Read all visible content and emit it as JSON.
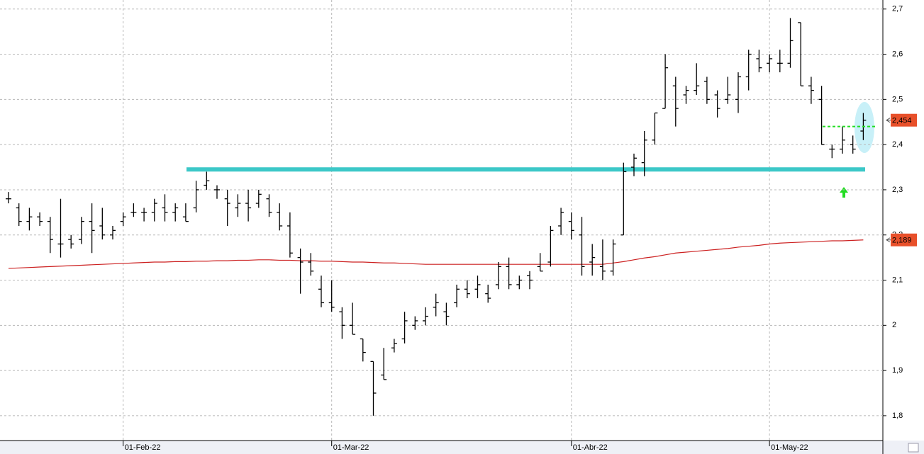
{
  "chart_data": {
    "type": "ohlc",
    "categories": [
      null,
      null,
      null,
      null,
      null,
      null,
      null,
      null,
      null,
      null,
      null,
      "01-Feb-22",
      null,
      null,
      null,
      null,
      null,
      null,
      null,
      null,
      null,
      null,
      null,
      null,
      null,
      null,
      null,
      null,
      null,
      null,
      null,
      "01-Mar-22",
      null,
      null,
      null,
      null,
      null,
      null,
      null,
      null,
      null,
      null,
      null,
      null,
      null,
      null,
      null,
      null,
      null,
      null,
      null,
      null,
      null,
      null,
      "01-Abr-22",
      null,
      null,
      null,
      null,
      null,
      null,
      null,
      null,
      null,
      null,
      null,
      null,
      null,
      null,
      null,
      null,
      null,
      null,
      "01-May-22",
      null,
      null,
      null,
      null,
      null,
      null,
      null,
      null,
      null
    ],
    "ohlc": {
      "color": "#000000",
      "open": [
        2.28,
        2.26,
        2.23,
        2.24,
        2.23,
        2.18,
        2.19,
        2.19,
        2.23,
        2.22,
        2.2,
        2.23,
        2.25,
        2.25,
        2.25,
        2.26,
        2.25,
        2.24,
        2.26,
        2.31,
        2.3,
        2.28,
        2.26,
        2.27,
        2.27,
        2.28,
        2.25,
        2.22,
        2.15,
        2.14,
        2.08,
        2.05,
        2.03,
        2.0,
        1.97,
        1.92,
        1.89,
        1.95,
        1.97,
        2.0,
        2.01,
        2.04,
        2.03,
        2.05,
        2.08,
        2.08,
        2.07,
        2.09,
        2.13,
        2.09,
        2.11,
        2.13,
        2.14,
        2.22,
        2.23,
        2.2,
        2.14,
        2.13,
        2.12,
        2.2,
        2.35,
        2.36,
        2.41,
        2.48,
        2.53,
        2.51,
        2.52,
        2.54,
        2.51,
        2.5,
        2.5,
        2.55,
        2.59,
        2.58,
        2.58,
        2.58,
        2.67,
        2.53,
        2.5,
        2.39,
        2.39,
        2.4,
        2.43
      ],
      "high": [
        2.295,
        2.27,
        2.26,
        2.25,
        2.24,
        2.28,
        2.2,
        2.24,
        2.27,
        2.26,
        2.22,
        2.25,
        2.27,
        2.26,
        2.28,
        2.29,
        2.27,
        2.27,
        2.32,
        2.34,
        2.31,
        2.3,
        2.29,
        2.3,
        2.3,
        2.29,
        2.27,
        2.25,
        2.17,
        2.16,
        2.11,
        2.1,
        2.04,
        2.05,
        1.97,
        1.92,
        1.95,
        1.97,
        2.03,
        2.02,
        2.04,
        2.07,
        2.05,
        2.09,
        2.1,
        2.11,
        2.09,
        2.14,
        2.15,
        2.11,
        2.12,
        2.16,
        2.22,
        2.26,
        2.25,
        2.24,
        2.18,
        2.19,
        2.19,
        2.36,
        2.38,
        2.43,
        2.47,
        2.6,
        2.55,
        2.53,
        2.58,
        2.55,
        2.52,
        2.55,
        2.56,
        2.61,
        2.61,
        2.6,
        2.61,
        2.68,
        2.67,
        2.55,
        2.53,
        2.4,
        2.44,
        2.42,
        2.47
      ],
      "low": [
        2.27,
        2.22,
        2.21,
        2.22,
        2.16,
        2.15,
        2.17,
        2.18,
        2.16,
        2.19,
        2.19,
        2.22,
        2.24,
        2.23,
        2.23,
        2.23,
        2.23,
        2.23,
        2.25,
        2.3,
        2.28,
        2.22,
        2.24,
        2.23,
        2.26,
        2.24,
        2.21,
        2.15,
        2.07,
        2.11,
        2.04,
        2.03,
        1.97,
        1.98,
        1.92,
        1.8,
        1.88,
        1.94,
        1.96,
        1.99,
        2.0,
        2.02,
        2.0,
        2.04,
        2.06,
        2.06,
        2.05,
        2.08,
        2.08,
        2.08,
        2.08,
        2.12,
        2.13,
        2.2,
        2.19,
        2.11,
        2.11,
        2.1,
        2.11,
        2.2,
        2.33,
        2.33,
        2.4,
        2.48,
        2.44,
        2.49,
        2.51,
        2.49,
        2.46,
        2.49,
        2.47,
        2.52,
        2.56,
        2.56,
        2.56,
        2.57,
        2.53,
        2.49,
        2.4,
        2.37,
        2.38,
        2.38,
        2.41
      ],
      "close": [
        2.28,
        2.23,
        2.24,
        2.23,
        2.19,
        2.18,
        2.18,
        2.23,
        2.21,
        2.2,
        2.21,
        2.24,
        2.25,
        2.25,
        2.27,
        2.25,
        2.26,
        2.23,
        2.3,
        2.32,
        2.3,
        2.27,
        2.27,
        2.26,
        2.29,
        2.25,
        2.22,
        2.16,
        2.14,
        2.12,
        2.05,
        2.04,
        2.0,
        1.98,
        1.94,
        1.85,
        1.88,
        1.96,
        2.01,
        2.01,
        2.02,
        2.05,
        2.02,
        2.08,
        2.07,
        2.09,
        2.06,
        2.13,
        2.09,
        2.1,
        2.1,
        2.12,
        2.21,
        2.25,
        2.21,
        2.13,
        2.15,
        2.12,
        2.18,
        2.34,
        2.37,
        2.41,
        2.47,
        2.57,
        2.48,
        2.52,
        2.53,
        2.5,
        2.48,
        2.51,
        2.55,
        2.6,
        2.57,
        2.59,
        2.58,
        2.63,
        2.53,
        2.52,
        2.4,
        2.39,
        2.41,
        2.39,
        2.454
      ]
    },
    "moving_average": {
      "color": "#cc2020",
      "values": [
        2.126,
        2.127,
        2.128,
        2.129,
        2.13,
        2.131,
        2.132,
        2.133,
        2.134,
        2.135,
        2.136,
        2.137,
        2.138,
        2.139,
        2.14,
        2.14,
        2.141,
        2.141,
        2.142,
        2.142,
        2.143,
        2.143,
        2.144,
        2.144,
        2.145,
        2.145,
        2.144,
        2.144,
        2.143,
        2.143,
        2.142,
        2.142,
        2.141,
        2.14,
        2.14,
        2.139,
        2.138,
        2.138,
        2.137,
        2.136,
        2.135,
        2.135,
        2.135,
        2.135,
        2.135,
        2.135,
        2.135,
        2.135,
        2.135,
        2.135,
        2.135,
        2.135,
        2.135,
        2.135,
        2.135,
        2.135,
        2.135,
        2.135,
        2.138,
        2.141,
        2.145,
        2.149,
        2.152,
        2.156,
        2.16,
        2.162,
        2.164,
        2.166,
        2.168,
        2.17,
        2.173,
        2.175,
        2.177,
        2.18,
        2.182,
        2.183,
        2.184,
        2.185,
        2.186,
        2.187,
        2.187,
        2.188,
        2.189
      ]
    },
    "support_level": {
      "value": 2.345,
      "color": "#3cc8c8"
    },
    "signal_level": {
      "value": 2.44,
      "color": "#22dd22"
    },
    "last_price": {
      "value": 2.454,
      "label": "2,454",
      "color": "#e8502a"
    },
    "ma_last": {
      "value": 2.189,
      "label": "2,189",
      "color": "#e8502a"
    },
    "ylim": [
      1.745,
      2.72
    ],
    "yticks": [
      {
        "value": 1.8,
        "label": "1,8"
      },
      {
        "value": 1.9,
        "label": "1,9"
      },
      2,
      {
        "value": 2.1,
        "label": "2,1"
      },
      {
        "value": 2.2,
        "label": "2,2"
      },
      {
        "value": 2.3,
        "label": "2,3"
      },
      {
        "value": 2.4,
        "label": "2,4"
      },
      {
        "value": 2.5,
        "label": "2,5"
      },
      {
        "value": 2.6,
        "label": "2,6"
      },
      {
        "value": 2.7,
        "label": "2,7"
      }
    ],
    "grid": true
  }
}
